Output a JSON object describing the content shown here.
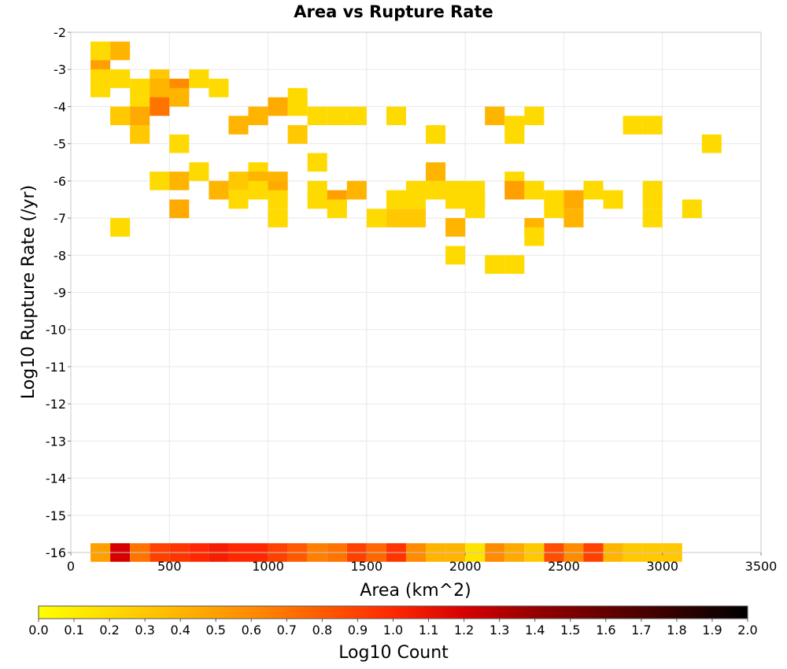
{
  "chart_data": {
    "type": "heatmap",
    "title": "Area vs Rupture Rate",
    "xlabel": "Area (km^2)",
    "ylabel": "Log10 Rupture Rate (/yr)",
    "xlim": [
      0,
      3500
    ],
    "ylim": [
      -16,
      -2
    ],
    "x_ticks": [
      0,
      500,
      1000,
      1500,
      2000,
      2500,
      3000,
      3500
    ],
    "y_ticks": [
      -2,
      -3,
      -4,
      -5,
      -6,
      -7,
      -8,
      -9,
      -10,
      -11,
      -12,
      -13,
      -14,
      -15,
      -16
    ],
    "x_tick_labels": [
      "0",
      "500",
      "1000",
      "1500",
      "2000",
      "2500",
      "3000",
      "3500"
    ],
    "y_tick_labels": [
      "-2",
      "-3",
      "-4",
      "-5",
      "-6",
      "-7",
      "-8",
      "-9",
      "-10",
      "-11",
      "-12",
      "-13",
      "-14",
      "-15",
      "-16"
    ],
    "bin_width_x": 100,
    "bin_height_y": 0.5,
    "grid": true,
    "colorbar": {
      "label": "Log10 Count",
      "min": 0.0,
      "max": 2.0,
      "ticks": [
        "0.0",
        "0.1",
        "0.2",
        "0.3",
        "0.4",
        "0.5",
        "0.6",
        "0.7",
        "0.8",
        "0.9",
        "1.0",
        "1.1",
        "1.2",
        "1.3",
        "1.4",
        "1.5",
        "1.6",
        "1.7",
        "1.8",
        "1.9",
        "2.0"
      ],
      "colors": [
        "#ffff00",
        "#ffc800",
        "#ff8c00",
        "#ff2800",
        "#d70000",
        "#960000",
        "#000000"
      ]
    },
    "cells": [
      {
        "x": 150,
        "y": -2.5,
        "v": 0.2
      },
      {
        "x": 250,
        "y": -2.5,
        "v": 0.4
      },
      {
        "x": 150,
        "y": -3.0,
        "v": 0.5
      },
      {
        "x": 150,
        "y": -3.25,
        "v": 0.2
      },
      {
        "x": 150,
        "y": -3.5,
        "v": 0.2
      },
      {
        "x": 250,
        "y": -3.25,
        "v": 0.2
      },
      {
        "x": 350,
        "y": -3.5,
        "v": 0.2
      },
      {
        "x": 350,
        "y": -4.0,
        "v": 0.2
      },
      {
        "x": 450,
        "y": -3.25,
        "v": 0.3
      },
      {
        "x": 450,
        "y": -3.5,
        "v": 0.4
      },
      {
        "x": 450,
        "y": -3.75,
        "v": 0.4
      },
      {
        "x": 450,
        "y": -4.0,
        "v": 0.7
      },
      {
        "x": 550,
        "y": -3.5,
        "v": 0.6
      },
      {
        "x": 550,
        "y": -3.75,
        "v": 0.4
      },
      {
        "x": 650,
        "y": -3.25,
        "v": 0.2
      },
      {
        "x": 750,
        "y": -3.5,
        "v": 0.2
      },
      {
        "x": 250,
        "y": -4.25,
        "v": 0.3
      },
      {
        "x": 350,
        "y": -4.25,
        "v": 0.45
      },
      {
        "x": 350,
        "y": -4.75,
        "v": 0.3
      },
      {
        "x": 550,
        "y": -5.0,
        "v": 0.2
      },
      {
        "x": 850,
        "y": -4.5,
        "v": 0.4
      },
      {
        "x": 950,
        "y": -4.25,
        "v": 0.4
      },
      {
        "x": 1050,
        "y": -4.0,
        "v": 0.45
      },
      {
        "x": 1150,
        "y": -3.75,
        "v": 0.2
      },
      {
        "x": 1150,
        "y": -4.0,
        "v": 0.2
      },
      {
        "x": 1150,
        "y": -4.75,
        "v": 0.3
      },
      {
        "x": 1250,
        "y": -4.25,
        "v": 0.2
      },
      {
        "x": 1350,
        "y": -4.25,
        "v": 0.2
      },
      {
        "x": 1450,
        "y": -4.25,
        "v": 0.2
      },
      {
        "x": 1250,
        "y": -5.5,
        "v": 0.2
      },
      {
        "x": 1650,
        "y": -4.25,
        "v": 0.2
      },
      {
        "x": 1850,
        "y": -4.75,
        "v": 0.2
      },
      {
        "x": 1850,
        "y": -5.75,
        "v": 0.4
      },
      {
        "x": 2150,
        "y": -4.25,
        "v": 0.4
      },
      {
        "x": 2250,
        "y": -4.5,
        "v": 0.2
      },
      {
        "x": 2250,
        "y": -4.75,
        "v": 0.2
      },
      {
        "x": 2350,
        "y": -4.25,
        "v": 0.2
      },
      {
        "x": 2850,
        "y": -4.5,
        "v": 0.2
      },
      {
        "x": 2950,
        "y": -4.5,
        "v": 0.2
      },
      {
        "x": 3250,
        "y": -5.0,
        "v": 0.2
      },
      {
        "x": 450,
        "y": -6.0,
        "v": 0.2
      },
      {
        "x": 550,
        "y": -6.0,
        "v": 0.4
      },
      {
        "x": 550,
        "y": -6.75,
        "v": 0.45
      },
      {
        "x": 650,
        "y": -5.75,
        "v": 0.2
      },
      {
        "x": 750,
        "y": -6.25,
        "v": 0.4
      },
      {
        "x": 850,
        "y": -6.0,
        "v": 0.3
      },
      {
        "x": 850,
        "y": -6.5,
        "v": 0.2
      },
      {
        "x": 950,
        "y": -5.75,
        "v": 0.2
      },
      {
        "x": 950,
        "y": -6.0,
        "v": 0.4
      },
      {
        "x": 950,
        "y": -6.25,
        "v": 0.2
      },
      {
        "x": 1050,
        "y": -6.0,
        "v": 0.4
      },
      {
        "x": 1050,
        "y": -6.25,
        "v": 0.45
      },
      {
        "x": 1050,
        "y": -6.5,
        "v": 0.2
      },
      {
        "x": 1050,
        "y": -7.0,
        "v": 0.2
      },
      {
        "x": 1250,
        "y": -6.25,
        "v": 0.2
      },
      {
        "x": 1250,
        "y": -6.5,
        "v": 0.2
      },
      {
        "x": 1350,
        "y": -6.5,
        "v": 0.5
      },
      {
        "x": 1350,
        "y": -6.75,
        "v": 0.2
      },
      {
        "x": 1450,
        "y": -6.25,
        "v": 0.4
      },
      {
        "x": 1550,
        "y": -7.0,
        "v": 0.2
      },
      {
        "x": 1650,
        "y": -6.5,
        "v": 0.2
      },
      {
        "x": 1650,
        "y": -7.0,
        "v": 0.3
      },
      {
        "x": 1750,
        "y": -6.25,
        "v": 0.2
      },
      {
        "x": 1750,
        "y": -6.5,
        "v": 0.2
      },
      {
        "x": 1750,
        "y": -7.0,
        "v": 0.3
      },
      {
        "x": 1850,
        "y": -6.25,
        "v": 0.2
      },
      {
        "x": 1950,
        "y": -6.25,
        "v": 0.2
      },
      {
        "x": 1950,
        "y": -6.5,
        "v": 0.2
      },
      {
        "x": 2050,
        "y": -6.25,
        "v": 0.2
      },
      {
        "x": 2050,
        "y": -6.5,
        "v": 0.2
      },
      {
        "x": 2050,
        "y": -6.75,
        "v": 0.2
      },
      {
        "x": 1950,
        "y": -7.25,
        "v": 0.4
      },
      {
        "x": 1950,
        "y": -8.0,
        "v": 0.2
      },
      {
        "x": 2250,
        "y": -6.0,
        "v": 0.2
      },
      {
        "x": 2250,
        "y": -6.25,
        "v": 0.5
      },
      {
        "x": 2350,
        "y": -6.25,
        "v": 0.2
      },
      {
        "x": 2450,
        "y": -6.5,
        "v": 0.2
      },
      {
        "x": 2450,
        "y": -6.75,
        "v": 0.2
      },
      {
        "x": 2550,
        "y": -6.5,
        "v": 0.45
      },
      {
        "x": 2550,
        "y": -7.0,
        "v": 0.4
      },
      {
        "x": 2650,
        "y": -6.25,
        "v": 0.2
      },
      {
        "x": 2750,
        "y": -6.5,
        "v": 0.2
      },
      {
        "x": 2950,
        "y": -6.25,
        "v": 0.2
      },
      {
        "x": 2950,
        "y": -6.5,
        "v": 0.2
      },
      {
        "x": 2950,
        "y": -7.0,
        "v": 0.2
      },
      {
        "x": 3150,
        "y": -6.75,
        "v": 0.2
      },
      {
        "x": 250,
        "y": -7.25,
        "v": 0.2
      },
      {
        "x": 2350,
        "y": -7.25,
        "v": 0.4
      },
      {
        "x": 2350,
        "y": -7.5,
        "v": 0.2
      },
      {
        "x": 2150,
        "y": -8.25,
        "v": 0.2
      },
      {
        "x": 2250,
        "y": -8.25,
        "v": 0.2
      },
      {
        "x": 150,
        "y": -16.0,
        "v": 0.5
      },
      {
        "x": 250,
        "y": -16.0,
        "v": 1.2
      },
      {
        "x": 350,
        "y": -16.0,
        "v": 0.7
      },
      {
        "x": 450,
        "y": -16.0,
        "v": 0.9
      },
      {
        "x": 550,
        "y": -16.0,
        "v": 0.95
      },
      {
        "x": 650,
        "y": -16.0,
        "v": 1.0
      },
      {
        "x": 750,
        "y": -16.0,
        "v": 1.05
      },
      {
        "x": 850,
        "y": -16.0,
        "v": 1.0
      },
      {
        "x": 950,
        "y": -16.0,
        "v": 1.0
      },
      {
        "x": 1050,
        "y": -16.0,
        "v": 0.9
      },
      {
        "x": 1150,
        "y": -16.0,
        "v": 0.8
      },
      {
        "x": 1250,
        "y": -16.0,
        "v": 0.65
      },
      {
        "x": 1350,
        "y": -16.0,
        "v": 0.7
      },
      {
        "x": 1450,
        "y": -16.0,
        "v": 0.9
      },
      {
        "x": 1550,
        "y": -16.0,
        "v": 0.75
      },
      {
        "x": 1650,
        "y": -16.0,
        "v": 0.95
      },
      {
        "x": 1750,
        "y": -16.0,
        "v": 0.6
      },
      {
        "x": 1850,
        "y": -16.0,
        "v": 0.4
      },
      {
        "x": 1950,
        "y": -16.0,
        "v": 0.4
      },
      {
        "x": 2050,
        "y": -16.0,
        "v": 0.15
      },
      {
        "x": 2150,
        "y": -16.0,
        "v": 0.6
      },
      {
        "x": 2250,
        "y": -16.0,
        "v": 0.45
      },
      {
        "x": 2350,
        "y": -16.0,
        "v": 0.3
      },
      {
        "x": 2450,
        "y": -16.0,
        "v": 0.85
      },
      {
        "x": 2550,
        "y": -16.0,
        "v": 0.6
      },
      {
        "x": 2650,
        "y": -16.0,
        "v": 0.9
      },
      {
        "x": 2750,
        "y": -16.0,
        "v": 0.4
      },
      {
        "x": 2850,
        "y": -16.0,
        "v": 0.3
      },
      {
        "x": 2950,
        "y": -16.0,
        "v": 0.3
      },
      {
        "x": 3050,
        "y": -16.0,
        "v": 0.3
      }
    ]
  }
}
